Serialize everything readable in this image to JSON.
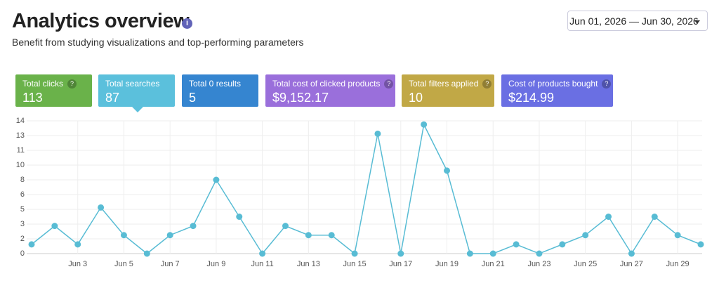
{
  "header": {
    "title": "Analytics overview",
    "subtitle": "Benefit from studying visualizations and top-performing parameters"
  },
  "date_range": "Jun 01, 2026 — Jun 30, 2026",
  "cards": [
    {
      "label": "Total clicks",
      "value": "113",
      "help": "?",
      "color": "#6ab24a"
    },
    {
      "label": "Total searches",
      "value": "87",
      "color": "#5bc0dc"
    },
    {
      "label": "Total 0 results",
      "value": "5",
      "color": "#3585d0"
    },
    {
      "label": "Total cost of clicked products",
      "value": "$9,152.17",
      "help": "?",
      "color": "#9a6fdb"
    },
    {
      "label": "Total filters applied",
      "value": "10",
      "help": "?",
      "color": "#c1a846"
    },
    {
      "label": "Cost of products bought",
      "value": "$214.99",
      "help": "?",
      "color": "#6a6fe3"
    }
  ],
  "chart_data": {
    "type": "line",
    "color": "#58bcd4",
    "grid": true,
    "categories": [
      null,
      null,
      "Jun 3",
      null,
      "Jun 5",
      null,
      "Jun 7",
      null,
      "Jun 9",
      null,
      "Jun 11",
      null,
      "Jun 13",
      null,
      "Jun 15",
      null,
      "Jun 17",
      null,
      "Jun 19",
      null,
      "Jun 21",
      null,
      "Jun 23",
      null,
      "Jun 25",
      null,
      "Jun 27",
      null,
      "Jun 29",
      null
    ],
    "values": [
      1,
      3,
      1,
      5,
      2,
      0,
      2,
      3,
      8,
      4,
      0,
      3,
      2,
      2,
      0,
      13,
      0,
      14,
      9,
      0,
      0,
      1,
      0,
      1,
      2,
      4,
      0,
      4,
      2,
      1
    ],
    "ylim": [
      0,
      14.4
    ],
    "yticks": [
      0,
      {
        "value": 1.6,
        "label": "2"
      },
      {
        "value": 3.2,
        "label": "3"
      },
      {
        "value": 4.8,
        "label": "5"
      },
      {
        "value": 6.4,
        "label": "6"
      },
      8,
      {
        "value": 9.6,
        "label": "10"
      },
      {
        "value": 11.2,
        "label": "11"
      },
      {
        "value": 12.8,
        "label": "13"
      },
      {
        "value": 14.4,
        "label": "14"
      }
    ]
  }
}
